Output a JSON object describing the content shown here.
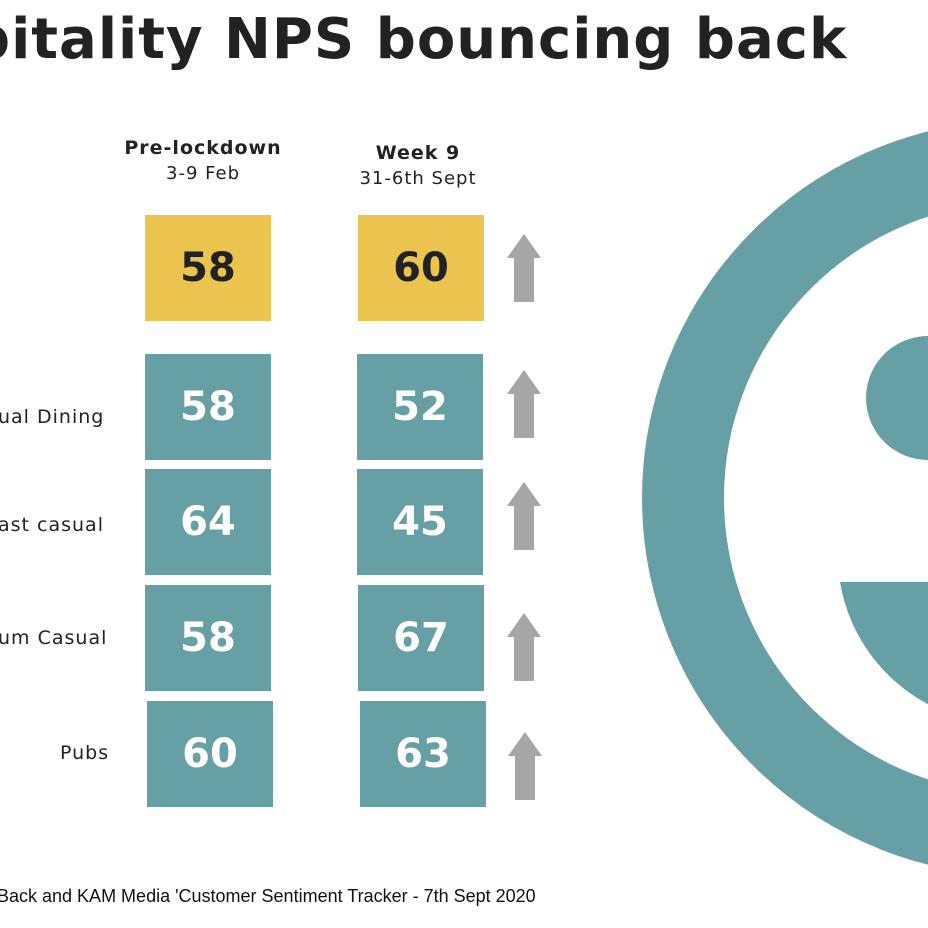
{
  "title": "pitality NPS bouncing back",
  "columns": {
    "pre": {
      "label": "Pre-lockdown",
      "dates": "3-9 Feb"
    },
    "week": {
      "label": "Week 9",
      "dates": "31-6th Sept"
    }
  },
  "rows": [
    {
      "label": "",
      "pre": "58",
      "week": "60",
      "trend": "up"
    },
    {
      "label": "ual Dining",
      "pre": "58",
      "week": "52",
      "trend": "up"
    },
    {
      "label": "ast casual",
      "pre": "64",
      "week": "45",
      "trend": "up"
    },
    {
      "label": "um Casual",
      "pre": "58",
      "week": "67",
      "trend": "up"
    },
    {
      "label": "Pubs",
      "pre": "60",
      "week": "63",
      "trend": "up"
    }
  ],
  "source": "Back and KAM Media 'Customer Sentiment Tracker - 7th Sept 2020",
  "colors": {
    "total_box": "#eac44f",
    "segment_box": "#67a0a4",
    "arrow": "#a6a6a6",
    "logo": "#67a0a4"
  },
  "icons": {
    "trend": "up-arrow-icon",
    "logo": "brand-logo-icon"
  }
}
